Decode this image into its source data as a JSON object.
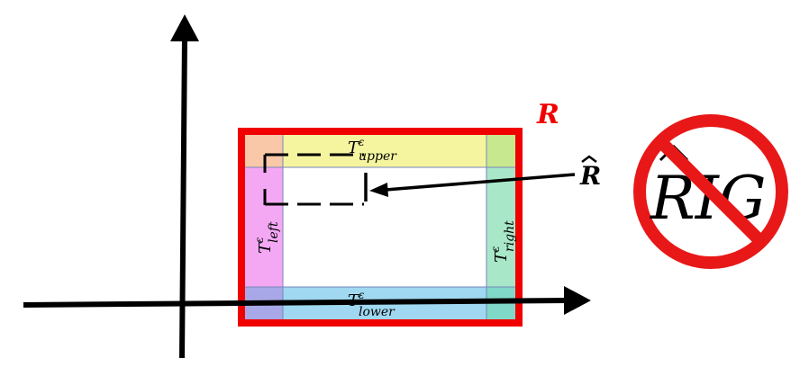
{
  "labels": {
    "region": "R",
    "region_hat": "R",
    "t_upper_main": "T",
    "t_upper_sup": "ε",
    "t_upper_sub": "upper",
    "t_lower_main": "T",
    "t_lower_sup": "ε",
    "t_lower_sub": "lower",
    "t_left_main": "T",
    "t_left_sup": "ε",
    "t_left_sub": "left",
    "t_right_main": "T",
    "t_right_sup": "ε",
    "t_right_sub": "right",
    "rig_text": "RIG"
  },
  "colors": {
    "region_border": "#f00000",
    "upper_strip": "#f5f5a0",
    "lower_strip": "#9fd8f0",
    "left_strip": "#f4a8f4",
    "right_strip": "#a8e8c8",
    "corner_top_left": "#f8c8a8",
    "corner_top_right": "#c8e890",
    "corner_bottom_left": "#a8a8e8",
    "corner_bottom_right": "#80d8c8",
    "forbid_red": "#e81818",
    "axis": "#000000"
  }
}
